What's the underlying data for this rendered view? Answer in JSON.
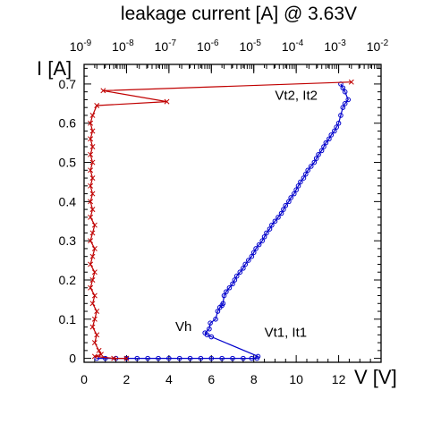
{
  "chart_data": {
    "type": "line",
    "title": "leakage current [A] @ 3.63V",
    "xlabel": "V [V]",
    "ylabel": "I [A]",
    "xlim": [
      0,
      14
    ],
    "ylim": [
      -0.01,
      0.75
    ],
    "x2lim_log10": [
      -9,
      -2
    ],
    "x2_scale": "log",
    "x_ticks": [
      "0",
      "2",
      "4",
      "6",
      "8",
      "10",
      "12"
    ],
    "y_ticks": [
      "0",
      "0.1",
      "0.2",
      "0.3",
      "0.4",
      "0.5",
      "0.6",
      "0.7"
    ],
    "x2_ticks": [
      {
        "base": "10",
        "exp": "-9"
      },
      {
        "base": "10",
        "exp": "-8"
      },
      {
        "base": "10",
        "exp": "-7"
      },
      {
        "base": "10",
        "exp": "-6"
      },
      {
        "base": "10",
        "exp": "-5"
      },
      {
        "base": "10",
        "exp": "-4"
      },
      {
        "base": "10",
        "exp": "-3"
      },
      {
        "base": "10",
        "exp": "-2"
      }
    ],
    "grid": false,
    "series": [
      {
        "color": "#0000cc",
        "marker": "circle",
        "axis": "V",
        "points": [
          [
            0.6,
            0.0
          ],
          [
            1.0,
            0.0
          ],
          [
            1.5,
            0.0
          ],
          [
            2.0,
            0.0
          ],
          [
            2.5,
            0.0
          ],
          [
            3.0,
            0.0
          ],
          [
            3.5,
            0.0
          ],
          [
            4.0,
            0.0
          ],
          [
            4.5,
            0.0
          ],
          [
            5.0,
            0.0
          ],
          [
            5.5,
            0.0
          ],
          [
            6.0,
            0.0
          ],
          [
            6.5,
            0.0
          ],
          [
            7.0,
            0.0
          ],
          [
            7.5,
            0.0
          ],
          [
            7.9,
            0.0
          ],
          [
            8.15,
            0.0
          ],
          [
            8.2,
            0.005
          ],
          [
            6.0,
            0.055
          ],
          [
            5.8,
            0.06
          ],
          [
            5.7,
            0.065
          ],
          [
            5.9,
            0.075
          ],
          [
            5.95,
            0.09
          ],
          [
            6.2,
            0.1
          ],
          [
            6.3,
            0.12
          ],
          [
            6.4,
            0.13
          ],
          [
            6.5,
            0.135
          ],
          [
            6.55,
            0.14
          ],
          [
            6.6,
            0.16
          ],
          [
            6.7,
            0.17
          ],
          [
            6.85,
            0.18
          ],
          [
            7.0,
            0.19
          ],
          [
            7.1,
            0.2
          ],
          [
            7.2,
            0.21
          ],
          [
            7.35,
            0.22
          ],
          [
            7.5,
            0.23
          ],
          [
            7.6,
            0.24
          ],
          [
            7.75,
            0.25
          ],
          [
            7.9,
            0.26
          ],
          [
            8.0,
            0.27
          ],
          [
            8.1,
            0.28
          ],
          [
            8.25,
            0.29
          ],
          [
            8.4,
            0.3
          ],
          [
            8.5,
            0.31
          ],
          [
            8.6,
            0.32
          ],
          [
            8.75,
            0.33
          ],
          [
            8.85,
            0.34
          ],
          [
            9.0,
            0.35
          ],
          [
            9.15,
            0.36
          ],
          [
            9.3,
            0.37
          ],
          [
            9.4,
            0.38
          ],
          [
            9.5,
            0.39
          ],
          [
            9.65,
            0.4
          ],
          [
            9.75,
            0.41
          ],
          [
            9.9,
            0.42
          ],
          [
            10.0,
            0.43
          ],
          [
            10.1,
            0.44
          ],
          [
            10.2,
            0.45
          ],
          [
            10.35,
            0.46
          ],
          [
            10.45,
            0.47
          ],
          [
            10.55,
            0.48
          ],
          [
            10.7,
            0.49
          ],
          [
            10.85,
            0.5
          ],
          [
            10.95,
            0.51
          ],
          [
            11.05,
            0.52
          ],
          [
            11.2,
            0.53
          ],
          [
            11.3,
            0.54
          ],
          [
            11.4,
            0.55
          ],
          [
            11.55,
            0.56
          ],
          [
            11.65,
            0.57
          ],
          [
            11.8,
            0.58
          ],
          [
            11.9,
            0.59
          ],
          [
            12.0,
            0.6
          ],
          [
            12.1,
            0.62
          ],
          [
            12.2,
            0.64
          ],
          [
            12.3,
            0.65
          ],
          [
            12.45,
            0.66
          ],
          [
            12.3,
            0.68
          ],
          [
            12.2,
            0.69
          ],
          [
            12.1,
            0.7
          ]
        ]
      },
      {
        "color": "#c00000",
        "marker": "x",
        "axis": "leakage",
        "points": [
          [
            -8.0,
            0.0
          ],
          [
            -8.3,
            0.0
          ],
          [
            -8.75,
            0.005
          ],
          [
            -8.6,
            0.01
          ],
          [
            -8.65,
            0.02
          ],
          [
            -8.75,
            0.04
          ],
          [
            -8.7,
            0.06
          ],
          [
            -8.8,
            0.08
          ],
          [
            -8.75,
            0.1
          ],
          [
            -8.7,
            0.12
          ],
          [
            -8.8,
            0.14
          ],
          [
            -8.75,
            0.16
          ],
          [
            -8.85,
            0.18
          ],
          [
            -8.8,
            0.2
          ],
          [
            -8.75,
            0.22
          ],
          [
            -8.85,
            0.24
          ],
          [
            -8.8,
            0.26
          ],
          [
            -8.75,
            0.28
          ],
          [
            -8.85,
            0.3
          ],
          [
            -8.8,
            0.32
          ],
          [
            -8.75,
            0.34
          ],
          [
            -8.85,
            0.36
          ],
          [
            -8.8,
            0.38
          ],
          [
            -8.85,
            0.4
          ],
          [
            -8.8,
            0.42
          ],
          [
            -8.85,
            0.44
          ],
          [
            -8.8,
            0.46
          ],
          [
            -8.85,
            0.48
          ],
          [
            -8.8,
            0.5
          ],
          [
            -8.85,
            0.52
          ],
          [
            -8.8,
            0.54
          ],
          [
            -8.85,
            0.56
          ],
          [
            -8.8,
            0.58
          ],
          [
            -8.85,
            0.6
          ],
          [
            -8.8,
            0.62
          ],
          [
            -8.7,
            0.645
          ],
          [
            -7.05,
            0.655
          ],
          [
            -8.55,
            0.683
          ],
          [
            -2.7,
            0.705
          ]
        ]
      }
    ],
    "annotations": [
      {
        "text": "Vt2, It2",
        "x": 9.0,
        "y": 0.66
      },
      {
        "text": "Vh",
        "x": 4.3,
        "y": 0.07
      },
      {
        "text": "Vt1, It1",
        "x": 8.5,
        "y": 0.055
      }
    ]
  }
}
